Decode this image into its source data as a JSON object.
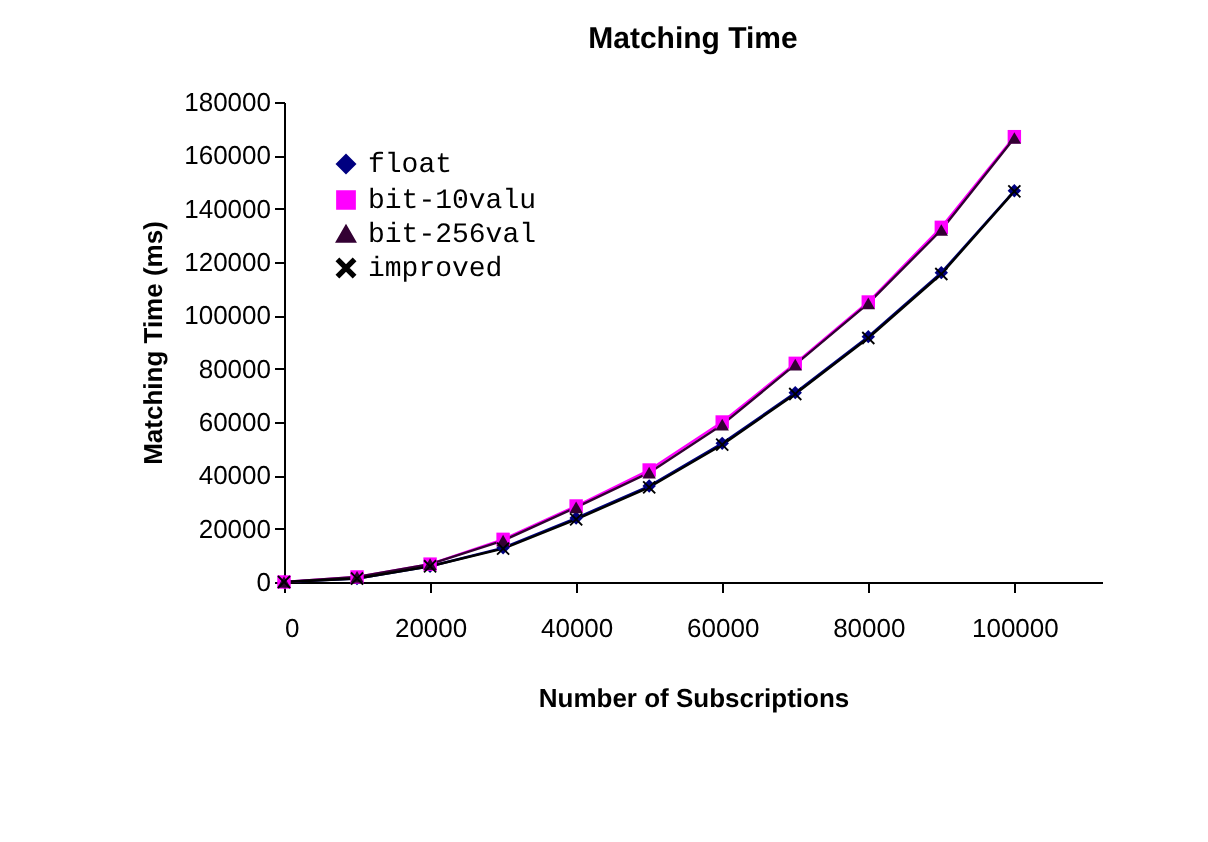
{
  "chart_data": {
    "type": "line",
    "title": "Matching Time",
    "xlabel": "Number of Subscriptions",
    "ylabel": "Matching Time (ms)",
    "x": [
      0,
      10000,
      20000,
      30000,
      40000,
      50000,
      60000,
      70000,
      80000,
      90000,
      100000
    ],
    "series": [
      {
        "name": "float",
        "color": "#000080",
        "marker": "diamond",
        "values": [
          0,
          1300,
          5900,
          12800,
          24000,
          36000,
          52000,
          71000,
          92000,
          116000,
          146700
        ]
      },
      {
        "name": "bit-10valu",
        "color": "#ff00ff",
        "marker": "square",
        "values": [
          0,
          1900,
          6700,
          16000,
          28500,
          42000,
          60000,
          82000,
          105000,
          133000,
          167000
        ]
      },
      {
        "name": "bit-256val",
        "color": "#330033",
        "marker": "triangle",
        "values": [
          0,
          1900,
          6700,
          15500,
          28000,
          41000,
          59000,
          81500,
          104500,
          132000,
          166500
        ]
      },
      {
        "name": "improved",
        "color": "#000000",
        "marker": "cross",
        "values": [
          0,
          1300,
          5900,
          12500,
          23500,
          35500,
          51500,
          70500,
          91500,
          115500,
          146500
        ]
      }
    ],
    "xlim": [
      0,
      112000
    ],
    "xticks": [
      0,
      20000,
      40000,
      60000,
      80000,
      100000
    ],
    "ylim": [
      0,
      180000
    ],
    "yticks": [
      0,
      20000,
      40000,
      60000,
      80000,
      100000,
      120000,
      140000,
      160000,
      180000
    ],
    "grid": false,
    "legend": "top left",
    "line_style": "solid"
  }
}
